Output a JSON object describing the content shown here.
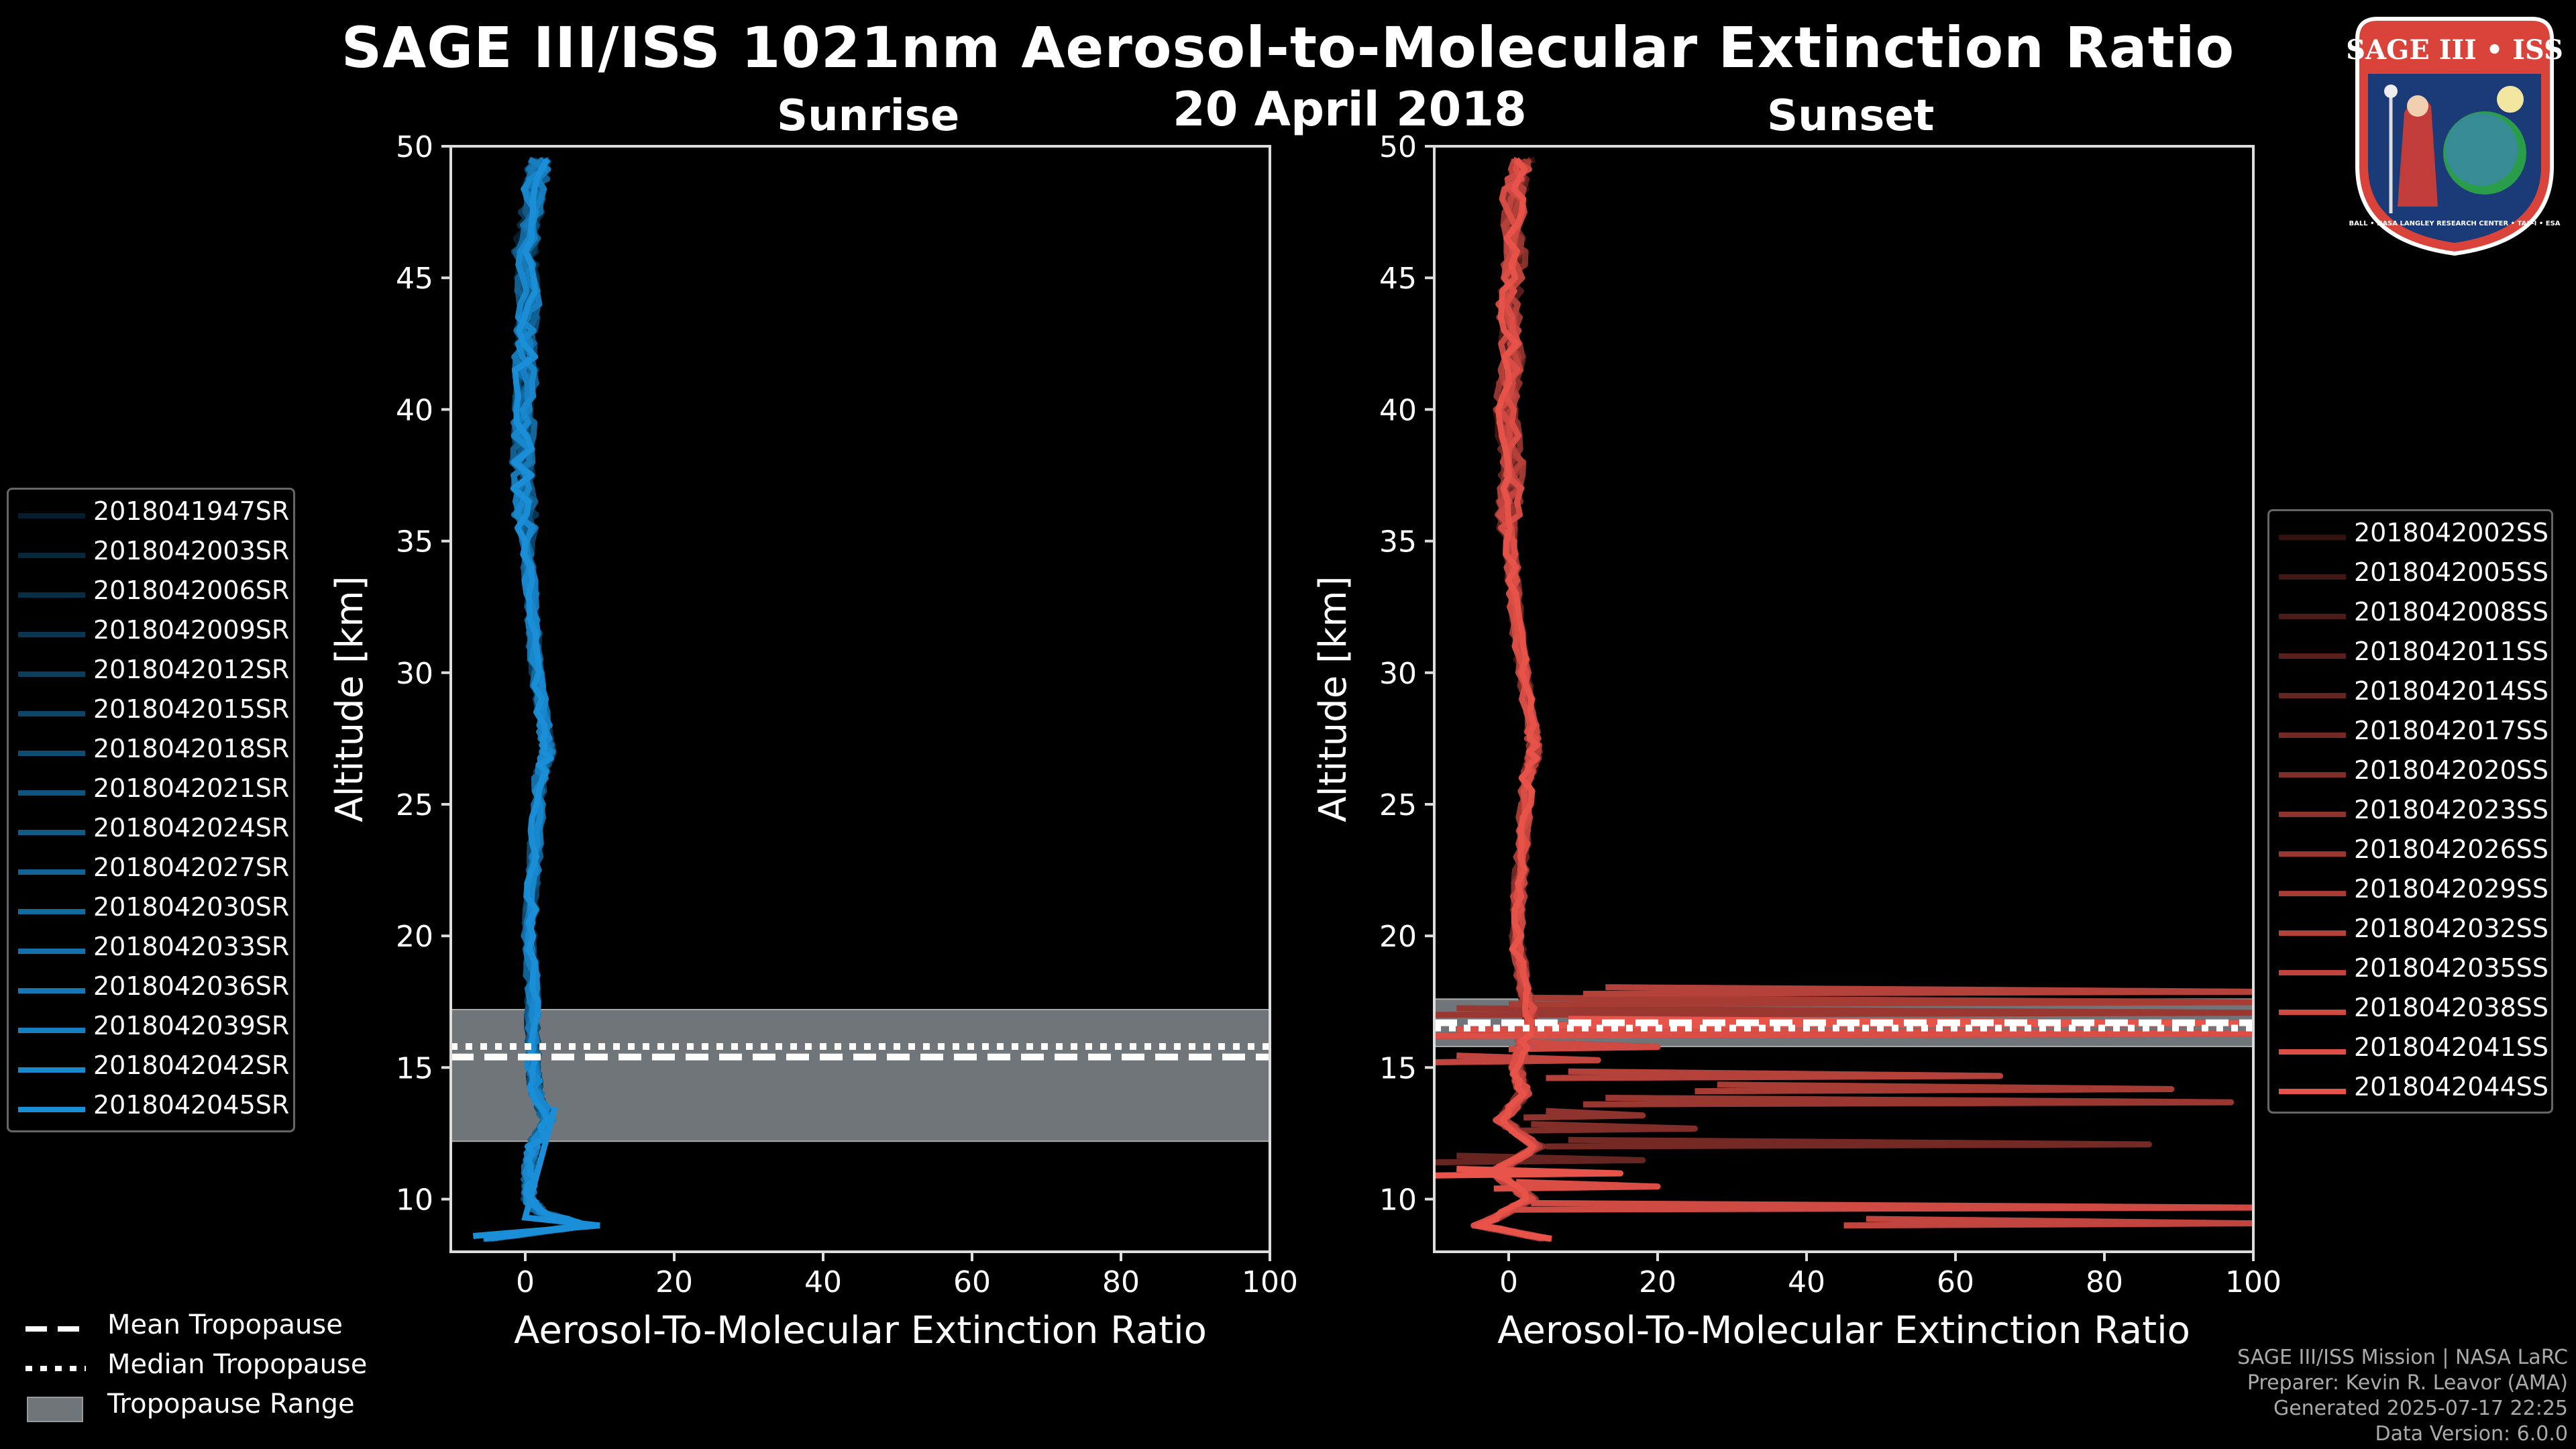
{
  "header": {
    "title": "SAGE III/ISS 1021nm Aerosol-to-Molecular Extinction Ratio",
    "date": "20 April 2018",
    "sunrise_label": "Sunrise",
    "sunset_label": "Sunset"
  },
  "logo": {
    "text_top": "SAGE III • ISS",
    "text_ring": "BALL • NASA LANGLEY RESEARCH CENTER • TAS-I • ESA"
  },
  "legend_bottom": {
    "mean": "Mean Tropopause",
    "median": "Median Tropopause",
    "range": "Tropopause Range"
  },
  "credits": {
    "line1": "SAGE III/ISS Mission | NASA LaRC",
    "line2": "Preparer: Kevin R. Leavor (AMA)",
    "line3": "Generated 2025-07-17 22:25",
    "line4": "Data Version: 6.0.0"
  },
  "colors": {
    "sunrise": "#1a8fd8",
    "sunset": "#e8534a",
    "tropo_range": "#70757a"
  },
  "chart_data": [
    {
      "type": "line",
      "name": "sunrise",
      "title": "Sunrise",
      "xlabel": "Aerosol-To-Molecular Extinction Ratio",
      "ylabel": "Altitude [km]",
      "xlim": [
        -10,
        100
      ],
      "ylim": [
        8,
        50
      ],
      "xticks": [
        0,
        20,
        40,
        60,
        80,
        100
      ],
      "yticks": [
        10,
        15,
        20,
        25,
        30,
        35,
        40,
        45,
        50
      ],
      "tropopause": {
        "mean": 15.4,
        "median": 15.8,
        "range": [
          12.2,
          17.2
        ]
      },
      "series_names": [
        "2018041947SR",
        "2018042003SR",
        "2018042006SR",
        "2018042009SR",
        "2018042012SR",
        "2018042015SR",
        "2018042018SR",
        "2018042021SR",
        "2018042024SR",
        "2018042027SR",
        "2018042030SR",
        "2018042033SR",
        "2018042036SR",
        "2018042039SR",
        "2018042042SR",
        "2018042045SR"
      ],
      "profile": {
        "alt": [
          8.5,
          9,
          9.5,
          10,
          11,
          12,
          13,
          14,
          15,
          16,
          18,
          20,
          22,
          24,
          26,
          27,
          28,
          30,
          32,
          34,
          36,
          38,
          40,
          42,
          44,
          46,
          48,
          49.5
        ],
        "ratio": [
          -5,
          8,
          2,
          0.5,
          0.5,
          1,
          3,
          1.5,
          1,
          1,
          1,
          0.5,
          1,
          1.5,
          2,
          3,
          2.5,
          1.5,
          1,
          0.5,
          0,
          -0.5,
          0,
          0,
          0.5,
          0,
          1,
          2
        ]
      }
    },
    {
      "type": "line",
      "name": "sunset",
      "title": "Sunset",
      "xlabel": "Aerosol-To-Molecular Extinction Ratio",
      "ylabel": "Altitude [km]",
      "xlim": [
        -10,
        100
      ],
      "ylim": [
        8,
        50
      ],
      "xticks": [
        0,
        20,
        40,
        60,
        80,
        100
      ],
      "yticks": [
        10,
        15,
        20,
        25,
        30,
        35,
        40,
        45,
        50
      ],
      "tropopause": {
        "mean": 16.7,
        "median": 16.5,
        "range": [
          15.8,
          17.6
        ]
      },
      "series_names": [
        "2018042002SS",
        "2018042005SS",
        "2018042008SS",
        "2018042011SS",
        "2018042014SS",
        "2018042017SS",
        "2018042020SS",
        "2018042023SS",
        "2018042026SS",
        "2018042029SS",
        "2018042032SS",
        "2018042035SS",
        "2018042038SS",
        "2018042041SS",
        "2018042044SS"
      ],
      "profile": {
        "alt": [
          8.5,
          9,
          10,
          11,
          12,
          13,
          14,
          15,
          16,
          17,
          18,
          20,
          22,
          24,
          26,
          27,
          28,
          30,
          32,
          34,
          36,
          38,
          40,
          42,
          44,
          46,
          48,
          49.5
        ],
        "ratio": [
          5,
          -4,
          3,
          -2,
          4,
          -1,
          2,
          1,
          2,
          3,
          2,
          1,
          1.5,
          2,
          2.5,
          3.5,
          3,
          2,
          1,
          0.5,
          0,
          0.5,
          -0.5,
          0.5,
          0,
          1,
          0.5,
          2
        ]
      },
      "spikes": [
        [
          9.0,
          45,
          100
        ],
        [
          9.6,
          0,
          100
        ],
        [
          10.4,
          -2,
          20
        ],
        [
          10.9,
          -10,
          15
        ],
        [
          11.4,
          -10,
          18
        ],
        [
          12.0,
          5,
          86
        ],
        [
          12.6,
          0,
          25
        ],
        [
          13.1,
          2,
          18
        ],
        [
          13.6,
          10,
          97
        ],
        [
          14.1,
          25,
          89
        ],
        [
          14.6,
          5,
          66
        ],
        [
          15.2,
          -10,
          12
        ],
        [
          15.7,
          0,
          20
        ],
        [
          16.2,
          -10,
          100
        ],
        [
          16.6,
          5,
          100
        ],
        [
          17.0,
          -10,
          100
        ],
        [
          17.4,
          0,
          100
        ],
        [
          17.8,
          10,
          100
        ]
      ]
    }
  ]
}
